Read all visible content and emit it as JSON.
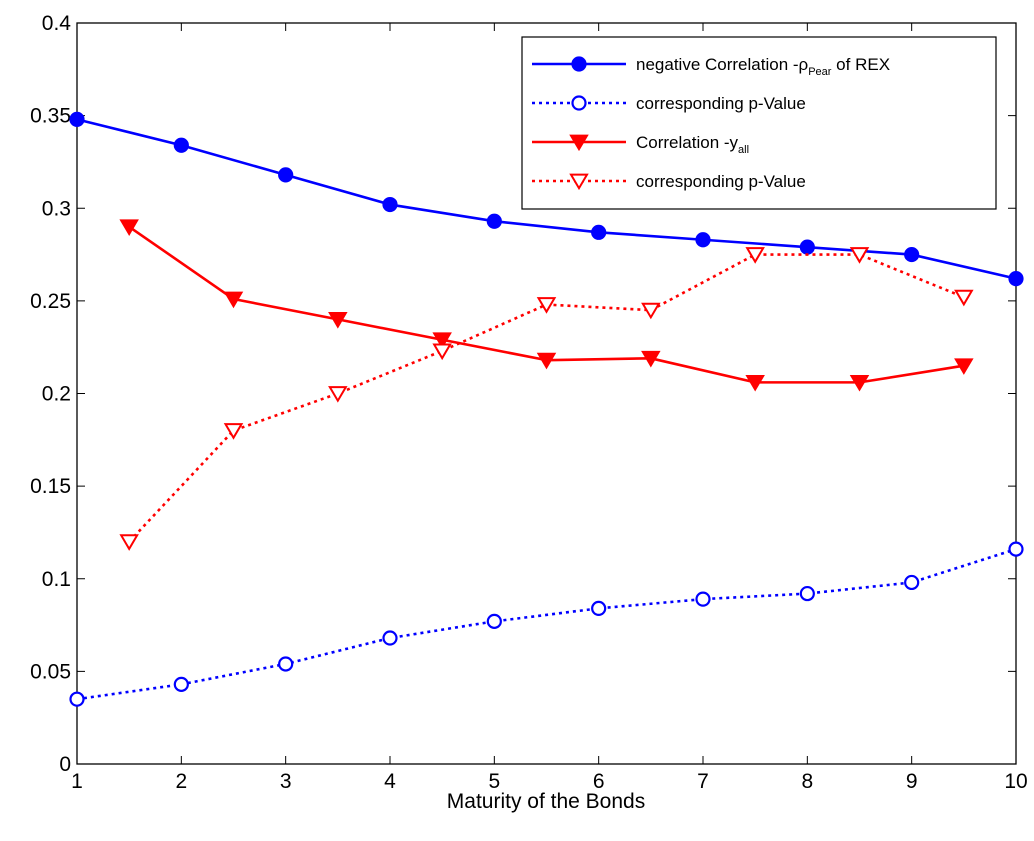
{
  "chart_data": {
    "type": "line",
    "title": "",
    "xlabel": "Maturity of the Bonds",
    "ylabel": "",
    "xlim": [
      1,
      10
    ],
    "ylim": [
      0,
      0.4
    ],
    "xticks": [
      "1",
      "2",
      "3",
      "4",
      "5",
      "6",
      "7",
      "8",
      "9",
      "10"
    ],
    "yticks": [
      "0",
      "0.05",
      "0.1",
      "0.15",
      "0.2",
      "0.25",
      "0.3",
      "0.35",
      "0.4"
    ],
    "grid": false,
    "legend_position": "top-right",
    "series": [
      {
        "name": "negative Correlation -ρPear of REX",
        "legend": {
          "pre": "negative Correlation -ρ",
          "sub": "Pear",
          "post": " of REX"
        },
        "color": "#0000ff",
        "line_style": "solid",
        "marker": "filled-circle",
        "x": [
          1,
          2,
          3,
          4,
          5,
          6,
          7,
          8,
          9,
          10
        ],
        "y": [
          0.348,
          0.334,
          0.318,
          0.302,
          0.293,
          0.287,
          0.283,
          0.279,
          0.275,
          0.262
        ]
      },
      {
        "name": "corresponding p-Value",
        "legend": {
          "pre": "corresponding p-Value",
          "sub": "",
          "post": ""
        },
        "color": "#0000ff",
        "line_style": "dotted",
        "marker": "open-circle",
        "x": [
          1,
          2,
          3,
          4,
          5,
          6,
          7,
          8,
          9,
          10
        ],
        "y": [
          0.035,
          0.043,
          0.054,
          0.068,
          0.077,
          0.084,
          0.089,
          0.092,
          0.098,
          0.116
        ]
      },
      {
        "name": "Correlation -yall",
        "legend": {
          "pre": "Correlation -y",
          "sub": "all",
          "post": ""
        },
        "color": "#ff0000",
        "line_style": "solid",
        "marker": "filled-triangle-down",
        "x": [
          1.5,
          2.5,
          3.5,
          4.5,
          5.5,
          6.5,
          7.5,
          8.5,
          9.5
        ],
        "y": [
          0.29,
          0.251,
          0.24,
          0.229,
          0.218,
          0.219,
          0.206,
          0.206,
          0.215
        ]
      },
      {
        "name": "corresponding p-Value",
        "legend": {
          "pre": "corresponding p-Value",
          "sub": "",
          "post": ""
        },
        "color": "#ff0000",
        "line_style": "dotted",
        "marker": "open-triangle-down",
        "x": [
          1.5,
          2.5,
          3.5,
          4.5,
          5.5,
          6.5,
          7.5,
          8.5,
          9.5
        ],
        "y": [
          0.12,
          0.18,
          0.2,
          0.223,
          0.248,
          0.245,
          0.275,
          0.275,
          0.252
        ]
      }
    ]
  }
}
